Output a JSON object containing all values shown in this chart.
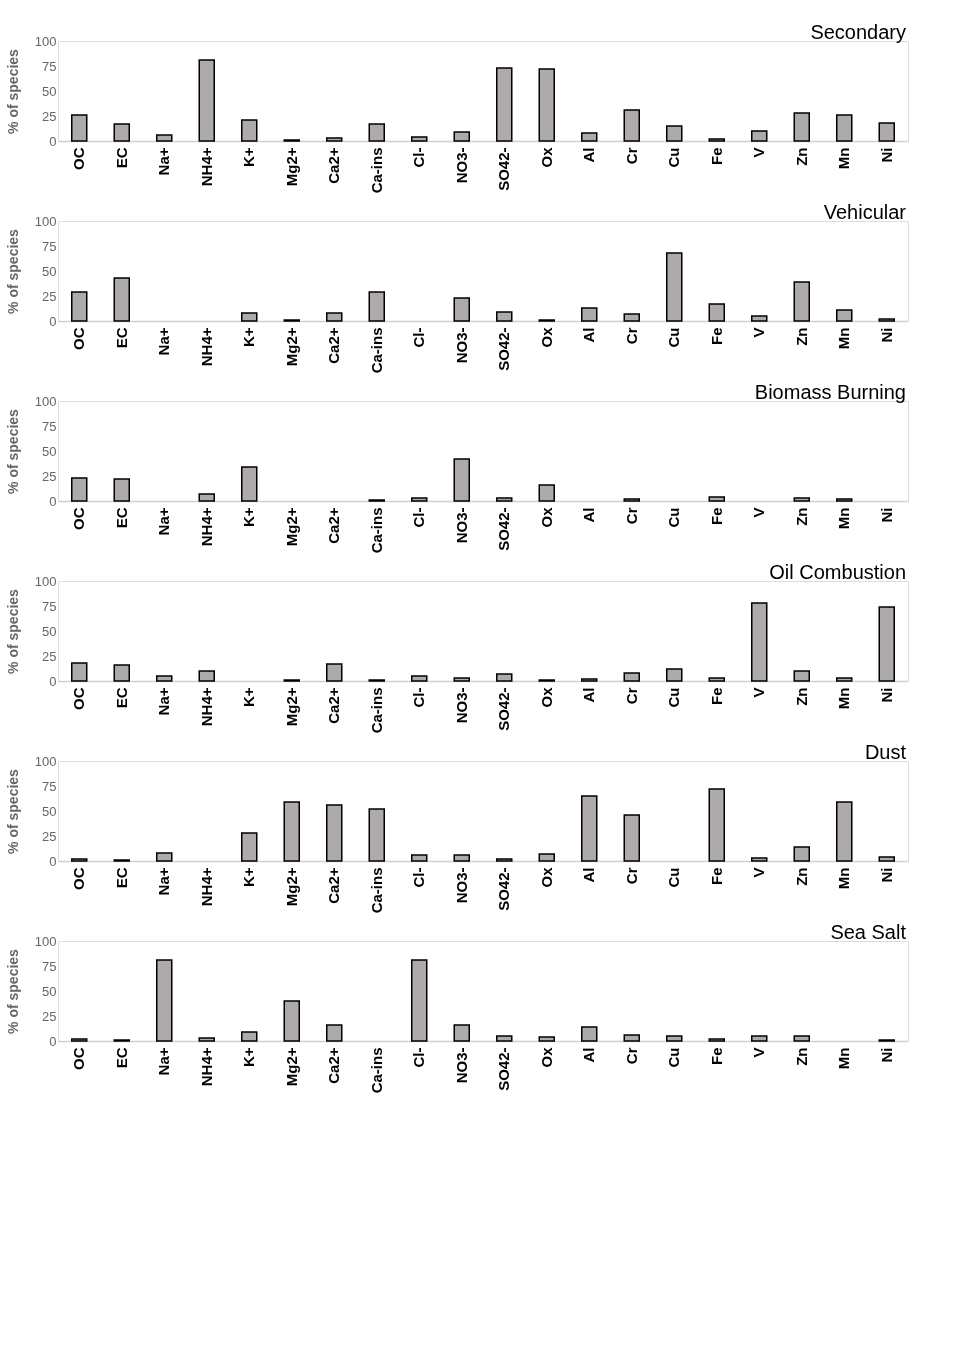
{
  "chart_data": [
    {
      "type": "bar",
      "title": "Secondary",
      "ylabel": "% of species",
      "categories": [
        "OC",
        "EC",
        "Na+",
        "NH4+",
        "K+",
        "Mg2+",
        "Ca2+",
        "Ca-ins",
        "Cl-",
        "NO3-",
        "SO42-",
        "Ox",
        "Al",
        "Cr",
        "Cu",
        "Fe",
        "V",
        "Zn",
        "Mn",
        "Ni"
      ],
      "values": [
        26,
        17,
        6,
        81,
        21,
        1,
        3,
        17,
        4,
        9,
        73,
        72,
        8,
        31,
        15,
        2,
        10,
        28,
        26,
        18
      ],
      "color": "#aeaaaa",
      "ylim": [
        0,
        100
      ],
      "yticks": [
        0,
        25,
        50,
        75,
        100
      ],
      "grid": false
    },
    {
      "type": "bar",
      "title": "Vehicular",
      "ylabel": "% of species",
      "categories": [
        "OC",
        "EC",
        "Na+",
        "NH4+",
        "K+",
        "Mg2+",
        "Ca2+",
        "Ca-ins",
        "Cl-",
        "NO3-",
        "SO42-",
        "Ox",
        "Al",
        "Cr",
        "Cu",
        "Fe",
        "V",
        "Zn",
        "Mn",
        "Ni"
      ],
      "values": [
        29,
        43,
        null,
        null,
        8,
        1,
        8,
        29,
        null,
        23,
        9,
        1,
        13,
        7,
        68,
        17,
        5,
        39,
        11,
        2
      ],
      "color": "#aeaaaa",
      "ylim": [
        0,
        100
      ],
      "yticks": [
        0,
        25,
        50,
        75,
        100
      ],
      "grid": false
    },
    {
      "type": "bar",
      "title": "Biomass Burning",
      "ylabel": "% of species",
      "categories": [
        "OC",
        "EC",
        "Na+",
        "NH4+",
        "K+",
        "Mg2+",
        "Ca2+",
        "Ca-ins",
        "Cl-",
        "NO3-",
        "SO42-",
        "Ox",
        "Al",
        "Cr",
        "Cu",
        "Fe",
        "V",
        "Zn",
        "Mn",
        "Ni"
      ],
      "values": [
        23,
        22,
        null,
        7,
        34,
        null,
        null,
        1,
        3,
        42,
        3,
        16,
        null,
        2,
        null,
        4,
        null,
        3,
        2,
        null
      ],
      "color": "#aeaaaa",
      "ylim": [
        0,
        100
      ],
      "yticks": [
        0,
        25,
        50,
        75,
        100
      ],
      "grid": false
    },
    {
      "type": "bar",
      "title": "Oil Combustion",
      "ylabel": "% of species",
      "categories": [
        "OC",
        "EC",
        "Na+",
        "NH4+",
        "K+",
        "Mg2+",
        "Ca2+",
        "Ca-ins",
        "Cl-",
        "NO3-",
        "SO42-",
        "Ox",
        "Al",
        "Cr",
        "Cu",
        "Fe",
        "V",
        "Zn",
        "Mn",
        "Ni"
      ],
      "values": [
        18,
        16,
        5,
        10,
        null,
        1,
        17,
        1,
        5,
        3,
        7,
        1,
        2,
        8,
        12,
        3,
        78,
        10,
        3,
        74
      ],
      "color": "#aeaaaa",
      "ylim": [
        0,
        100
      ],
      "yticks": [
        0,
        25,
        50,
        75,
        100
      ],
      "grid": false
    },
    {
      "type": "bar",
      "title": "Dust",
      "ylabel": "% of species",
      "categories": [
        "OC",
        "EC",
        "Na+",
        "NH4+",
        "K+",
        "Mg2+",
        "Ca2+",
        "Ca-ins",
        "Cl-",
        "NO3-",
        "SO42-",
        "Ox",
        "Al",
        "Cr",
        "Cu",
        "Fe",
        "V",
        "Zn",
        "Mn",
        "Ni"
      ],
      "values": [
        2,
        1,
        8,
        null,
        28,
        59,
        56,
        52,
        6,
        6,
        2,
        7,
        65,
        46,
        null,
        72,
        3,
        14,
        59,
        4
      ],
      "color": "#aeaaaa",
      "ylim": [
        0,
        100
      ],
      "yticks": [
        0,
        25,
        50,
        75,
        100
      ],
      "grid": false
    },
    {
      "type": "bar",
      "title": "Sea Salt",
      "ylabel": "% of species",
      "categories": [
        "OC",
        "EC",
        "Na+",
        "NH4+",
        "K+",
        "Mg2+",
        "Ca2+",
        "Ca-ins",
        "Cl-",
        "NO3-",
        "SO42-",
        "Ox",
        "Al",
        "Cr",
        "Cu",
        "Fe",
        "V",
        "Zn",
        "Mn",
        "Ni"
      ],
      "values": [
        2,
        1,
        81,
        3,
        9,
        40,
        16,
        null,
        81,
        16,
        5,
        4,
        14,
        6,
        5,
        2,
        5,
        5,
        null,
        1
      ],
      "color": "#aeaaaa",
      "ylim": [
        0,
        100
      ],
      "yticks": [
        0,
        25,
        50,
        75,
        100
      ],
      "grid": false
    }
  ]
}
